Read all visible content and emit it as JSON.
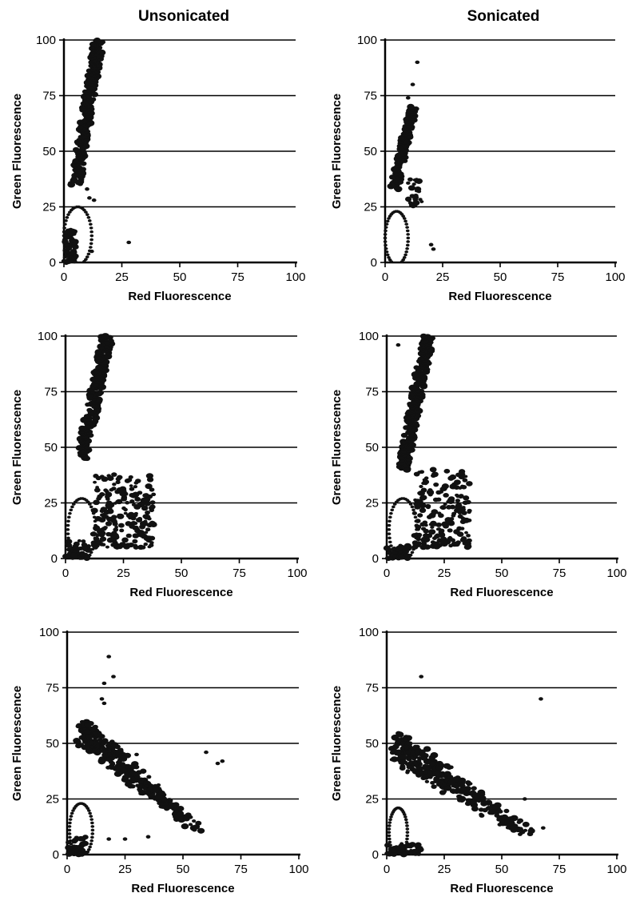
{
  "columns": {
    "left_title": "Unsonicated",
    "right_title": "Sonicated"
  },
  "chart_data": [
    {
      "type": "scatter",
      "panel": "unsonicated-1",
      "xlabel": "Red Fluorescence",
      "ylabel": "Green Fluorescence",
      "xlim": [
        0,
        100
      ],
      "ylim": [
        0,
        100
      ],
      "xticks": [
        0,
        25,
        50,
        75,
        100
      ],
      "yticks": [
        0,
        25,
        50,
        75,
        100
      ],
      "grid": "horizontal",
      "clusters": [
        {
          "shape": "band",
          "x": [
            5,
            15
          ],
          "y": [
            35,
            100
          ],
          "w": 4.5
        },
        {
          "shape": "ring",
          "cx": 6,
          "cy": 12,
          "rx": 6,
          "ry": 13
        },
        {
          "shape": "blob",
          "x": [
            0,
            5
          ],
          "y": [
            0,
            15
          ],
          "n": 60
        },
        {
          "shape": "points",
          "pts": [
            [
              28,
              9
            ],
            [
              12,
              5
            ],
            [
              11,
              29
            ],
            [
              13,
              28
            ],
            [
              10,
              33
            ]
          ]
        }
      ]
    },
    {
      "type": "scatter",
      "panel": "sonicated-1",
      "xlabel": "Red Fluorescence",
      "ylabel": "Green Fluorescence",
      "xlim": [
        0,
        100
      ],
      "ylim": [
        0,
        100
      ],
      "xticks": [
        0,
        25,
        50,
        75,
        100
      ],
      "yticks": [
        0,
        25,
        50,
        75,
        100
      ],
      "grid": "horizontal",
      "clusters": [
        {
          "shape": "band",
          "x": [
            4,
            12
          ],
          "y": [
            33,
            70
          ],
          "w": 4
        },
        {
          "shape": "ring",
          "cx": 5,
          "cy": 11,
          "rx": 5,
          "ry": 12
        },
        {
          "shape": "blob",
          "x": [
            10,
            16
          ],
          "y": [
            25,
            40
          ],
          "n": 25
        },
        {
          "shape": "points",
          "pts": [
            [
              14,
              90
            ],
            [
              12,
              80
            ],
            [
              10,
              74
            ],
            [
              20,
              8
            ],
            [
              21,
              6
            ]
          ]
        }
      ]
    },
    {
      "type": "scatter",
      "panel": "unsonicated-2",
      "xlabel": "Red Fluorescence",
      "ylabel": "Green Fluorescence",
      "xlim": [
        0,
        100
      ],
      "ylim": [
        0,
        100
      ],
      "xticks": [
        0,
        25,
        50,
        75,
        100
      ],
      "yticks": [
        0,
        25,
        50,
        75,
        100
      ],
      "grid": "horizontal",
      "clusters": [
        {
          "shape": "band",
          "x": [
            7,
            18
          ],
          "y": [
            45,
            100
          ],
          "w": 5
        },
        {
          "shape": "ring",
          "cx": 7,
          "cy": 13,
          "rx": 6,
          "ry": 14
        },
        {
          "shape": "blob",
          "x": [
            12,
            38
          ],
          "y": [
            5,
            38
          ],
          "n": 220
        },
        {
          "shape": "blob",
          "x": [
            0,
            10
          ],
          "y": [
            0,
            8
          ],
          "n": 50
        }
      ]
    },
    {
      "type": "scatter",
      "panel": "sonicated-2",
      "xlabel": "Red Fluorescence",
      "ylabel": "Green Fluorescence",
      "xlim": [
        0,
        100
      ],
      "ylim": [
        0,
        100
      ],
      "xticks": [
        0,
        25,
        50,
        75,
        100
      ],
      "yticks": [
        0,
        25,
        50,
        75,
        100
      ],
      "grid": "horizontal",
      "clusters": [
        {
          "shape": "band",
          "x": [
            7,
            18
          ],
          "y": [
            40,
            100
          ],
          "w": 5
        },
        {
          "shape": "ring",
          "cx": 7,
          "cy": 13,
          "rx": 6,
          "ry": 14
        },
        {
          "shape": "blob",
          "x": [
            12,
            36
          ],
          "y": [
            5,
            40
          ],
          "n": 200
        },
        {
          "shape": "blob",
          "x": [
            0,
            10
          ],
          "y": [
            0,
            6
          ],
          "n": 40
        },
        {
          "shape": "points",
          "pts": [
            [
              5,
              96
            ],
            [
              28,
              36
            ]
          ]
        }
      ]
    },
    {
      "type": "scatter",
      "panel": "unsonicated-3",
      "xlabel": "Red Fluorescence",
      "ylabel": "Green Fluorescence",
      "xlim": [
        0,
        100
      ],
      "ylim": [
        0,
        100
      ],
      "xticks": [
        0,
        25,
        50,
        75,
        100
      ],
      "yticks": [
        0,
        25,
        50,
        75,
        100
      ],
      "grid": "horizontal",
      "clusters": [
        {
          "shape": "diag",
          "x": [
            7,
            55
          ],
          "y": [
            55,
            12
          ],
          "w": 9,
          "n": 320
        },
        {
          "shape": "ring",
          "cx": 6,
          "cy": 11,
          "rx": 5,
          "ry": 12
        },
        {
          "shape": "blob",
          "x": [
            0,
            8
          ],
          "y": [
            0,
            8
          ],
          "n": 50
        },
        {
          "shape": "points",
          "pts": [
            [
              18,
              89
            ],
            [
              16,
              77
            ],
            [
              20,
              80
            ],
            [
              30,
              45
            ],
            [
              60,
              46
            ],
            [
              65,
              41
            ],
            [
              67,
              42
            ],
            [
              15,
              70
            ],
            [
              16,
              68
            ],
            [
              18,
              7
            ],
            [
              25,
              7
            ],
            [
              35,
              8
            ]
          ]
        }
      ]
    },
    {
      "type": "scatter",
      "panel": "sonicated-3",
      "xlabel": "Red Fluorescence",
      "ylabel": "Green Fluorescence",
      "xlim": [
        0,
        100
      ],
      "ylim": [
        0,
        100
      ],
      "xticks": [
        0,
        25,
        50,
        75,
        100
      ],
      "yticks": [
        0,
        25,
        50,
        75,
        100
      ],
      "grid": "horizontal",
      "clusters": [
        {
          "shape": "diag",
          "x": [
            5,
            60
          ],
          "y": [
            48,
            10
          ],
          "w": 10,
          "n": 340
        },
        {
          "shape": "ring",
          "cx": 5,
          "cy": 10,
          "rx": 4,
          "ry": 11
        },
        {
          "shape": "blob",
          "x": [
            0,
            15
          ],
          "y": [
            0,
            5
          ],
          "n": 60
        },
        {
          "shape": "points",
          "pts": [
            [
              15,
              80
            ],
            [
              67,
              70
            ],
            [
              13,
              48
            ],
            [
              32,
              25
            ],
            [
              41,
              18
            ],
            [
              50,
              17
            ],
            [
              68,
              12
            ],
            [
              60,
              25
            ]
          ]
        }
      ]
    }
  ]
}
